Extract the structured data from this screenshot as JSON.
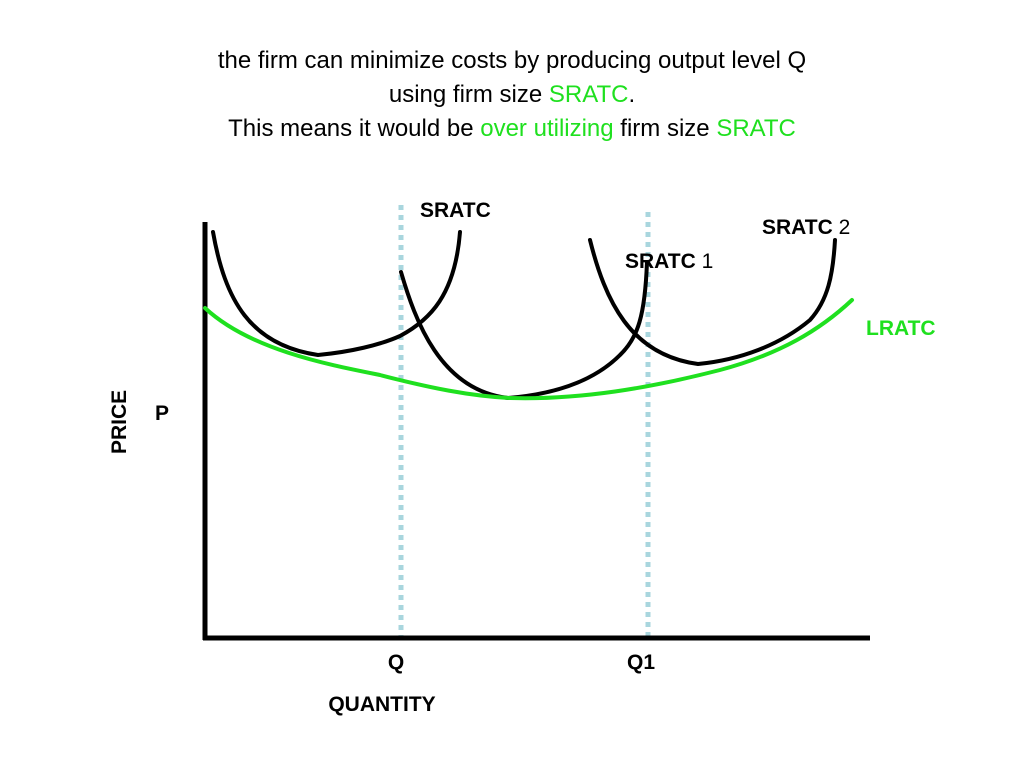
{
  "caption": {
    "line1": "the firm can minimize costs by producing output level Q",
    "line2_pre": "using firm size ",
    "line2_hl": "SRATC",
    "line2_post": ".",
    "line3_pre": "This means it would be ",
    "line3_hl1": "over utilizing",
    "line3_mid": " firm size ",
    "line3_hl2": "SRATC"
  },
  "axes": {
    "ylabel": "PRICE",
    "xlabel": "QUANTITY",
    "p_label": "P",
    "q_label": "Q",
    "q1_label": "Q1"
  },
  "curves": {
    "sratc": {
      "label": "SRATC"
    },
    "sratc1": {
      "label": "SRATC",
      "suffix": " 1"
    },
    "sratc2": {
      "label": "SRATC",
      "suffix": " 2"
    },
    "lratc": {
      "label": "LRATC"
    }
  },
  "colors": {
    "curve": "#000000",
    "lratc": "#1fe01f",
    "guide": "#a9d6de",
    "highlight": "#1fe01f"
  }
}
